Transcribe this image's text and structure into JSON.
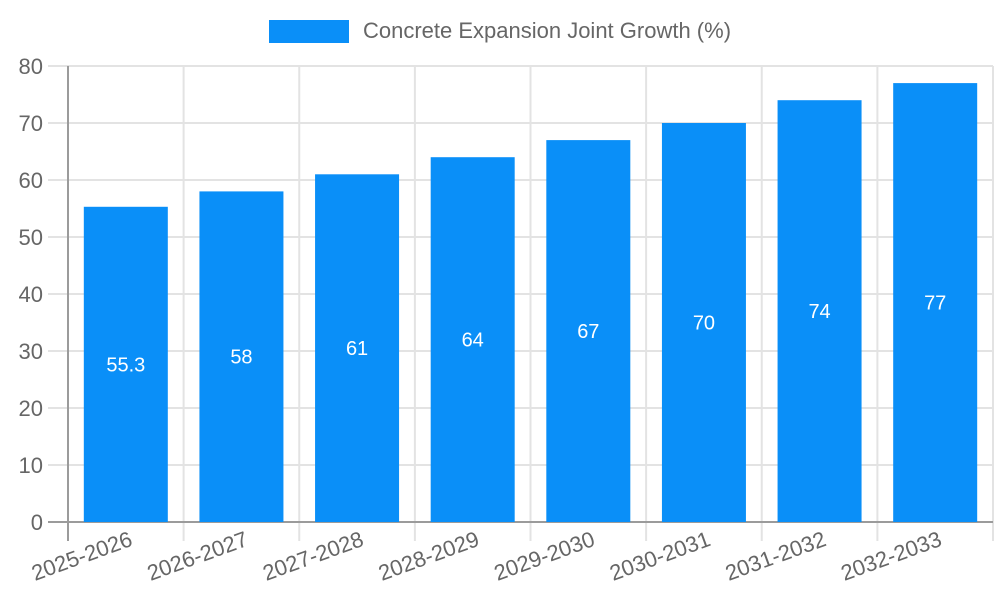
{
  "legend": {
    "label": "Concrete Expansion Joint Growth (%)"
  },
  "colors": {
    "bar": "#0a8ff8",
    "grid": "#e3e3e3",
    "axis": "#9b9b9b",
    "tick_text": "#666666",
    "value_label_text": "#ffffff",
    "background": "#ffffff"
  },
  "chart_data": {
    "type": "bar",
    "title": "",
    "xlabel": "",
    "ylabel": "",
    "categories": [
      "2025-2026",
      "2026-2027",
      "2027-2028",
      "2028-2029",
      "2029-2030",
      "2030-2031",
      "2031-2032",
      "2032-2033"
    ],
    "series": [
      {
        "name": "Concrete Expansion Joint Growth (%)",
        "values": [
          55.3,
          58,
          61,
          64,
          67,
          70,
          74,
          77
        ]
      }
    ],
    "value_labels": [
      "55.3",
      "58",
      "61",
      "64",
      "67",
      "70",
      "74",
      "77"
    ],
    "value_label_position": "inside-center",
    "ylim": [
      0,
      80
    ],
    "ytick_step": 10,
    "ytick_labels": [
      "0",
      "10",
      "20",
      "30",
      "40",
      "50",
      "60",
      "70",
      "80"
    ],
    "grid": true,
    "legend_position": "top",
    "x_label_rotation_deg": -20
  }
}
